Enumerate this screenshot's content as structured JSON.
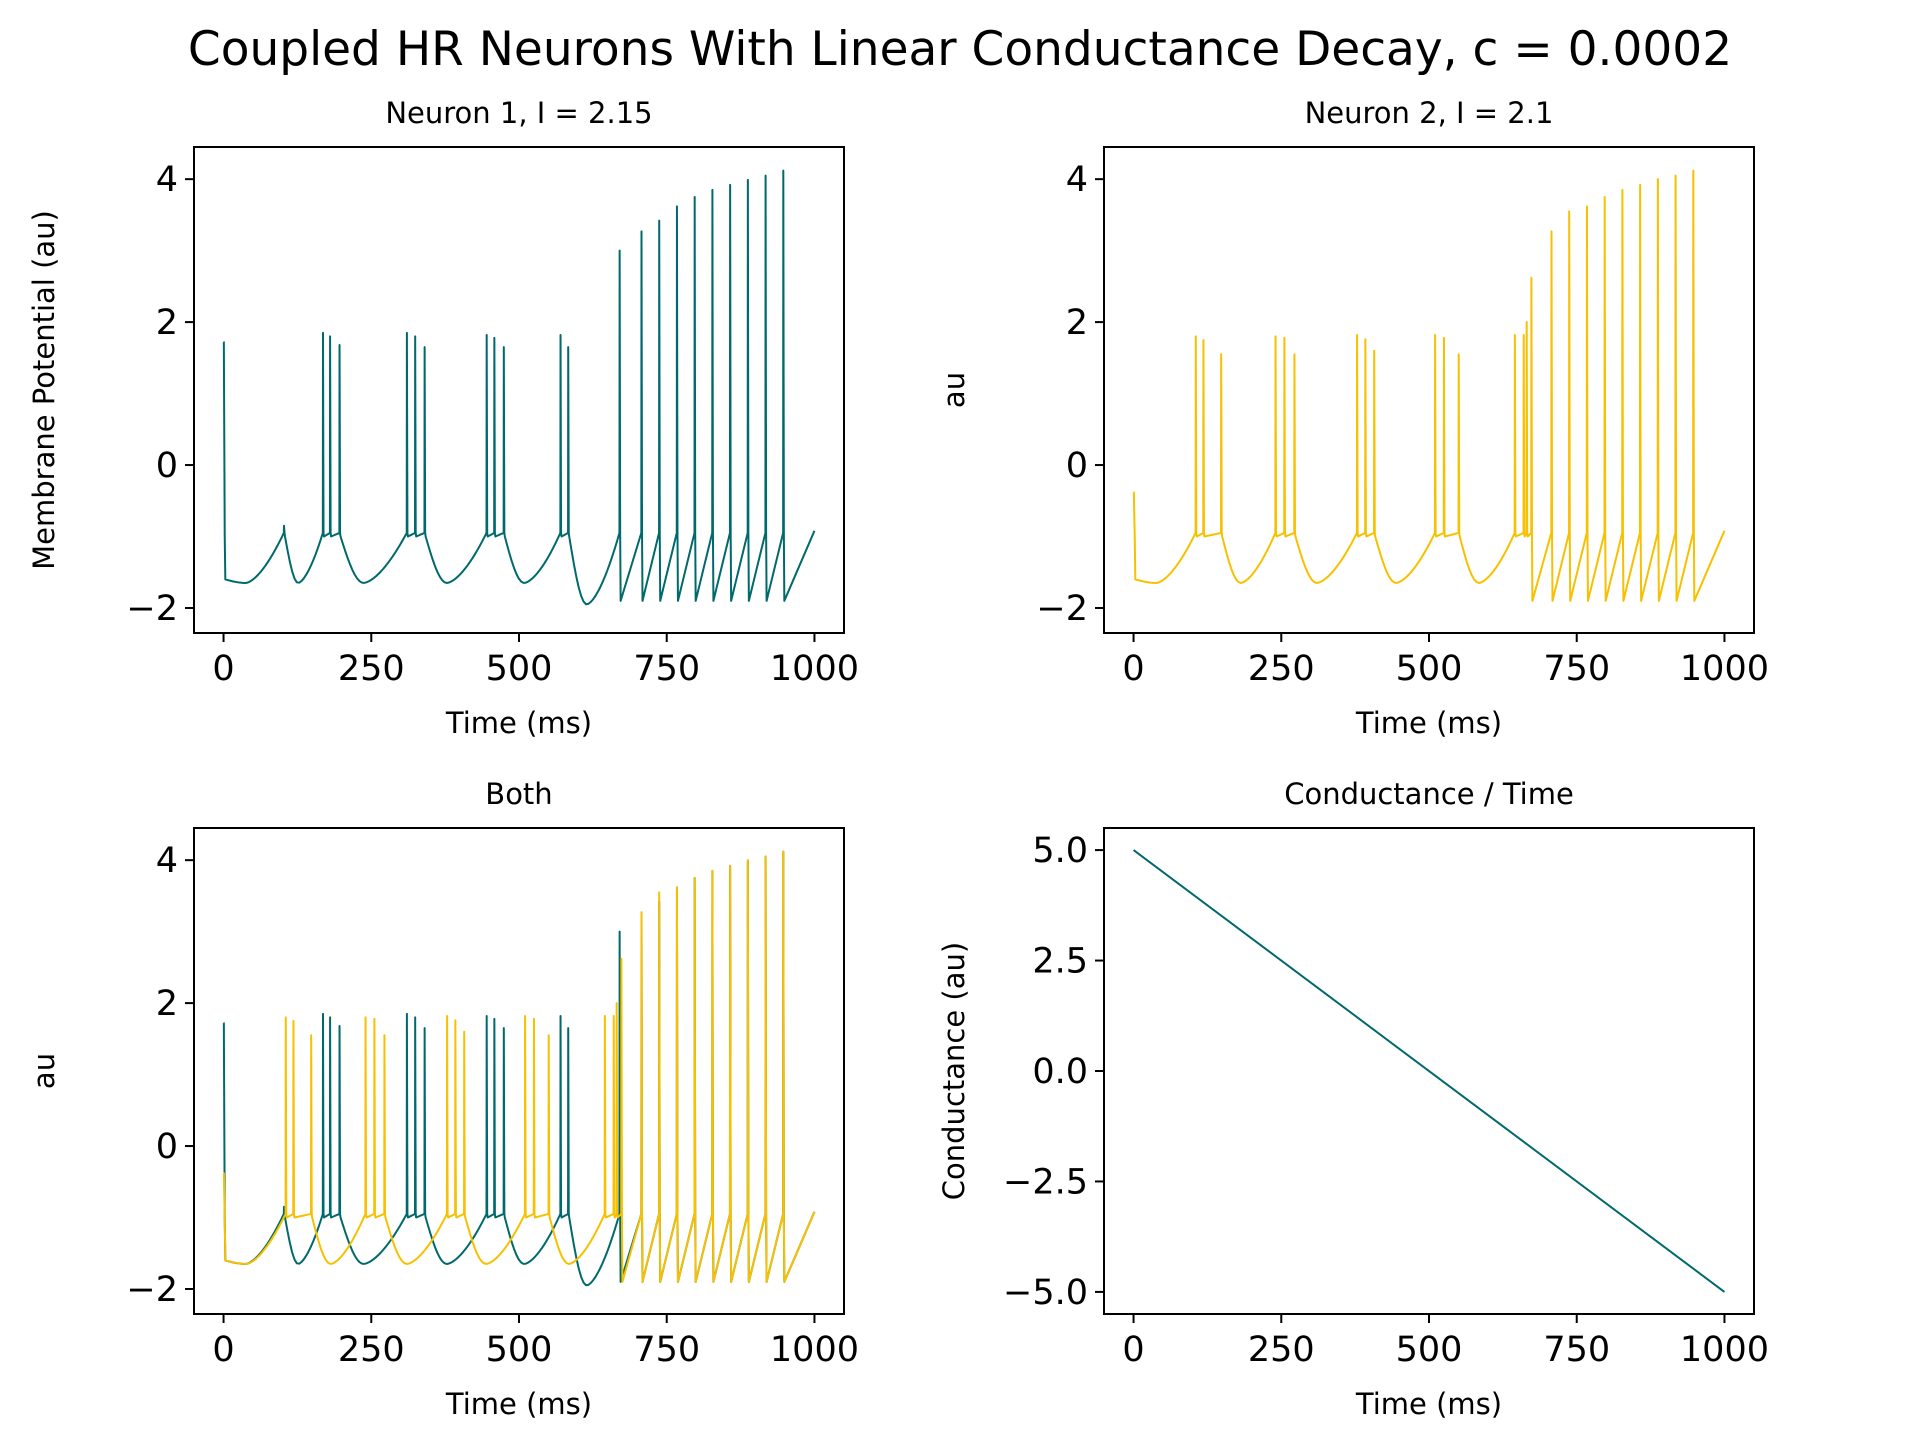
{
  "figure": {
    "title": "Coupled HR Neurons With Linear Conductance Decay, c = 0.0002"
  },
  "colors": {
    "teal": "#00696c",
    "amber": "#f7c000"
  },
  "chart_data": [
    {
      "type": "line",
      "title": "Neuron 1, I = 2.15",
      "xlabel": "Time (ms)",
      "ylabel": "Membrane Potential (au)",
      "xlim": [
        -50,
        1050
      ],
      "ylim": [
        -2.35,
        4.45
      ],
      "xticks": [
        0,
        250,
        500,
        750,
        1000
      ],
      "xtick_labels": [
        "0",
        "250",
        "500",
        "750",
        "1000"
      ],
      "yticks": [
        -2,
        0,
        2,
        4
      ],
      "ytick_labels": [
        "−2",
        "0",
        "2",
        "4"
      ],
      "series": [
        {
          "color": "#00696c",
          "spikes": [
            [
              1,
              1.72
            ],
            [
              102,
              -0.85
            ],
            [
              168,
              1.85
            ],
            [
              180,
              1.8
            ],
            [
              196,
              1.68
            ],
            [
              310,
              1.85
            ],
            [
              324,
              1.8
            ],
            [
              340,
              1.65
            ],
            [
              445,
              1.82
            ],
            [
              458,
              1.78
            ],
            [
              474,
              1.65
            ],
            [
              570,
              1.82
            ],
            [
              583,
              1.65
            ],
            [
              670,
              3.0
            ],
            [
              707,
              3.27
            ],
            [
              737,
              3.42
            ],
            [
              767,
              3.62
            ],
            [
              797,
              3.75
            ],
            [
              827,
              3.85
            ],
            [
              857,
              3.92
            ],
            [
              887,
              3.99
            ],
            [
              917,
              4.05
            ],
            [
              947,
              4.12
            ]
          ]
        }
      ]
    },
    {
      "type": "line",
      "title": "Neuron 2, I = 2.1",
      "xlabel": "Time (ms)",
      "ylabel": "au",
      "xlim": [
        -50,
        1050
      ],
      "ylim": [
        -2.35,
        4.45
      ],
      "xticks": [
        0,
        250,
        500,
        750,
        1000
      ],
      "xtick_labels": [
        "0",
        "250",
        "500",
        "750",
        "1000"
      ],
      "yticks": [
        -2,
        0,
        2,
        4
      ],
      "ytick_labels": [
        "−2",
        "0",
        "2",
        "4"
      ],
      "series": [
        {
          "color": "#f7c000",
          "spikes": [
            [
              1,
              -0.38
            ],
            [
              105,
              1.8
            ],
            [
              118,
              1.75
            ],
            [
              148,
              1.55
            ],
            [
              240,
              1.8
            ],
            [
              255,
              1.78
            ],
            [
              272,
              1.55
            ],
            [
              378,
              1.82
            ],
            [
              392,
              1.76
            ],
            [
              407,
              1.6
            ],
            [
              510,
              1.82
            ],
            [
              525,
              1.78
            ],
            [
              550,
              1.55
            ],
            [
              645,
              1.82
            ],
            [
              660,
              1.82
            ],
            [
              665,
              2.0
            ],
            [
              673,
              2.62
            ],
            [
              707,
              3.27
            ],
            [
              737,
              3.55
            ],
            [
              767,
              3.62
            ],
            [
              797,
              3.75
            ],
            [
              827,
              3.85
            ],
            [
              857,
              3.92
            ],
            [
              887,
              4.0
            ],
            [
              917,
              4.05
            ],
            [
              947,
              4.12
            ]
          ]
        }
      ]
    },
    {
      "type": "line",
      "title": "Both",
      "xlabel": "Time (ms)",
      "ylabel": "au",
      "xlim": [
        -50,
        1050
      ],
      "ylim": [
        -2.35,
        4.45
      ],
      "xticks": [
        0,
        250,
        500,
        750,
        1000
      ],
      "xtick_labels": [
        "0",
        "250",
        "500",
        "750",
        "1000"
      ],
      "yticks": [
        -2,
        0,
        2,
        4
      ],
      "ytick_labels": [
        "−2",
        "0",
        "2",
        "4"
      ],
      "series": [
        {
          "color": "#00696c",
          "spikes": [
            [
              1,
              1.72
            ],
            [
              102,
              -0.85
            ],
            [
              168,
              1.85
            ],
            [
              180,
              1.8
            ],
            [
              196,
              1.68
            ],
            [
              310,
              1.85
            ],
            [
              324,
              1.8
            ],
            [
              340,
              1.65
            ],
            [
              445,
              1.82
            ],
            [
              458,
              1.78
            ],
            [
              474,
              1.65
            ],
            [
              570,
              1.82
            ],
            [
              583,
              1.65
            ],
            [
              670,
              3.0
            ],
            [
              707,
              3.27
            ],
            [
              737,
              3.42
            ],
            [
              767,
              3.62
            ],
            [
              797,
              3.75
            ],
            [
              827,
              3.85
            ],
            [
              857,
              3.92
            ],
            [
              887,
              3.99
            ],
            [
              917,
              4.05
            ],
            [
              947,
              4.12
            ]
          ]
        },
        {
          "color": "#f7c000",
          "spikes": [
            [
              1,
              -0.38
            ],
            [
              105,
              1.8
            ],
            [
              118,
              1.75
            ],
            [
              148,
              1.55
            ],
            [
              240,
              1.8
            ],
            [
              255,
              1.78
            ],
            [
              272,
              1.55
            ],
            [
              378,
              1.82
            ],
            [
              392,
              1.76
            ],
            [
              407,
              1.6
            ],
            [
              510,
              1.82
            ],
            [
              525,
              1.78
            ],
            [
              550,
              1.55
            ],
            [
              645,
              1.82
            ],
            [
              660,
              1.82
            ],
            [
              665,
              2.0
            ],
            [
              673,
              2.62
            ],
            [
              707,
              3.27
            ],
            [
              737,
              3.55
            ],
            [
              767,
              3.62
            ],
            [
              797,
              3.75
            ],
            [
              827,
              3.85
            ],
            [
              857,
              3.92
            ],
            [
              887,
              4.0
            ],
            [
              917,
              4.05
            ],
            [
              947,
              4.12
            ]
          ]
        }
      ]
    },
    {
      "type": "line",
      "title": "Conductance / Time",
      "xlabel": "Time (ms)",
      "ylabel": "Conductance (au)",
      "xlim": [
        -50,
        1050
      ],
      "ylim": [
        -5.5,
        5.5
      ],
      "xticks": [
        0,
        250,
        500,
        750,
        1000
      ],
      "xtick_labels": [
        "0",
        "250",
        "500",
        "750",
        "1000"
      ],
      "yticks": [
        -5,
        -2.5,
        0,
        2.5,
        5
      ],
      "ytick_labels": [
        "−5.0",
        "−2.5",
        "0.0",
        "2.5",
        "5.0"
      ],
      "series": [
        {
          "color": "#00696c",
          "x": [
            0,
            1000
          ],
          "y": [
            5.0,
            -5.0
          ]
        }
      ]
    }
  ]
}
